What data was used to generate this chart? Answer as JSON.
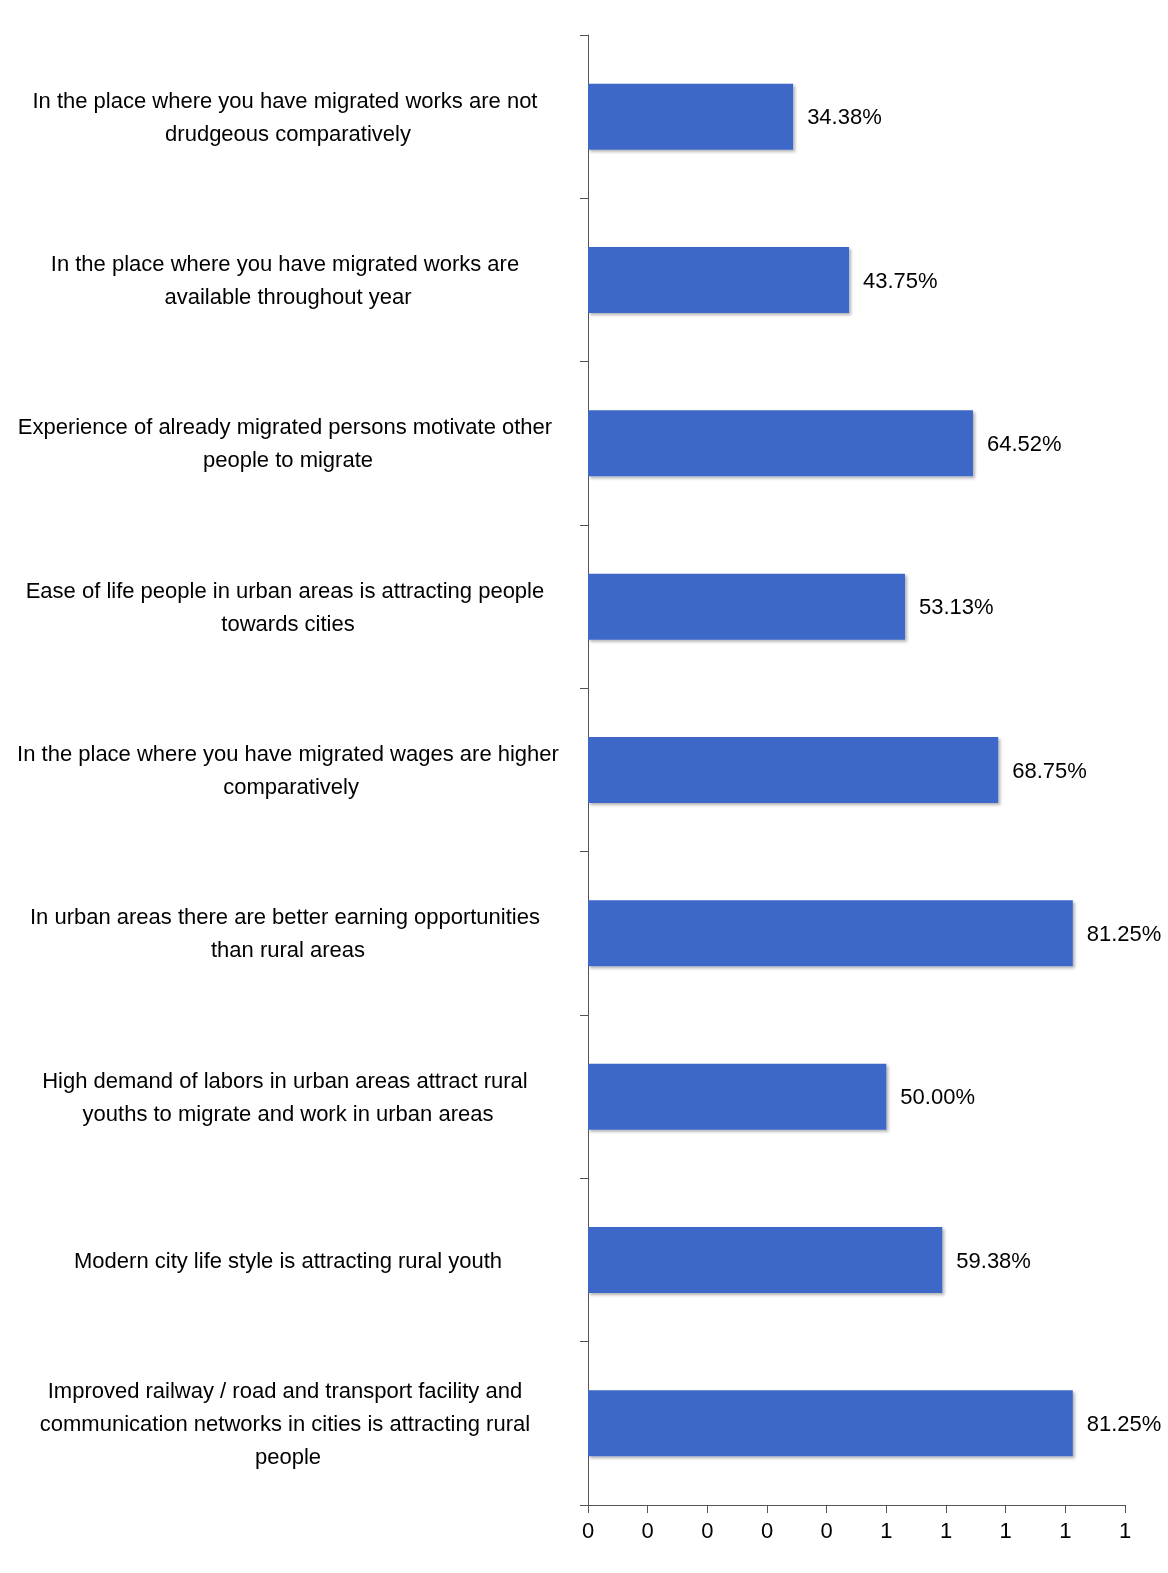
{
  "chart_data": {
    "type": "bar",
    "orientation": "horizontal",
    "categories": [
      "In the place where you have migrated works are not drudgeous comparatively",
      "In the place where you have migrated works are available throughout year",
      "Experience of already migrated persons motivate other people to migrate",
      "Ease of life people in urban areas is attracting people towards cities",
      "In the place where you have migrated wages are higher comparatively",
      "In urban areas there are better earning opportunities than rural areas",
      "High demand of labors in urban areas attract rural youths to migrate and work in urban areas",
      "Modern city life style is attracting rural youth",
      "Improved railway / road and transport facility and communication networks in cities is attracting rural people"
    ],
    "values": [
      0.3438,
      0.4375,
      0.6452,
      0.5313,
      0.6875,
      0.8125,
      0.5,
      0.5938,
      0.8125
    ],
    "value_labels": [
      "34.38%",
      "43.75%",
      "64.52%",
      "53.13%",
      "68.75%",
      "81.25%",
      "50.00%",
      "59.38%",
      "81.25%"
    ],
    "color": "#3c68c8",
    "xlim": [
      0,
      0.9
    ],
    "xticks": [
      0,
      {
        "value": 0.1,
        "label": "0"
      },
      {
        "value": 0.2,
        "label": "0"
      },
      {
        "value": 0.3,
        "label": "0"
      },
      {
        "value": 0.4,
        "label": "0"
      },
      {
        "value": 0.5,
        "label": "1"
      },
      {
        "value": 0.6,
        "label": "1"
      },
      {
        "value": 0.7,
        "label": "1"
      },
      {
        "value": 0.8,
        "label": "1"
      },
      {
        "value": 0.9,
        "label": "1"
      }
    ],
    "grid": false
  }
}
